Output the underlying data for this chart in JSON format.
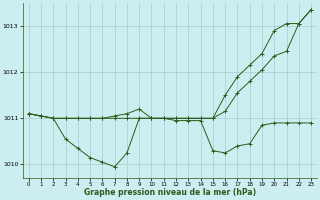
{
  "xlabel": "Graphe pression niveau de la mer (hPa)",
  "bg_color": "#cdeef0",
  "line_color": "#2d5a1b",
  "marker": "+",
  "xlim": [
    -0.5,
    23.5
  ],
  "ylim": [
    1009.7,
    1013.5
  ],
  "yticks": [
    1010,
    1011,
    1012,
    1013
  ],
  "xticks": [
    0,
    1,
    2,
    3,
    4,
    5,
    6,
    7,
    8,
    9,
    10,
    11,
    12,
    13,
    14,
    15,
    16,
    17,
    18,
    19,
    20,
    21,
    22,
    23
  ],
  "line1": [
    1011.1,
    1011.05,
    1011.0,
    1011.0,
    1011.0,
    1011.0,
    1011.0,
    1011.0,
    1011.0,
    1011.0,
    1011.0,
    1011.0,
    1011.0,
    1011.0,
    1011.0,
    1011.0,
    1011.5,
    1011.9,
    1012.15,
    1012.4,
    1012.9,
    1013.05,
    1013.05,
    1013.35
  ],
  "line2": [
    1011.1,
    1011.05,
    1011.0,
    1010.55,
    1010.35,
    1010.15,
    1010.05,
    1009.95,
    1010.25,
    1011.0,
    1011.0,
    1011.0,
    1010.95,
    1010.95,
    1010.95,
    1010.3,
    1010.25,
    1010.4,
    1010.45,
    1010.85,
    1010.9,
    1010.9,
    1010.9,
    1010.9
  ],
  "line3": [
    1011.1,
    1011.05,
    1011.0,
    1011.0,
    1011.0,
    1011.0,
    1011.0,
    1011.05,
    1011.1,
    1011.2,
    1011.0,
    1011.0,
    1011.0,
    1011.0,
    1011.0,
    1011.0,
    1011.15,
    1011.55,
    1011.8,
    1012.05,
    1012.35,
    1012.45,
    1013.05,
    1013.35
  ]
}
